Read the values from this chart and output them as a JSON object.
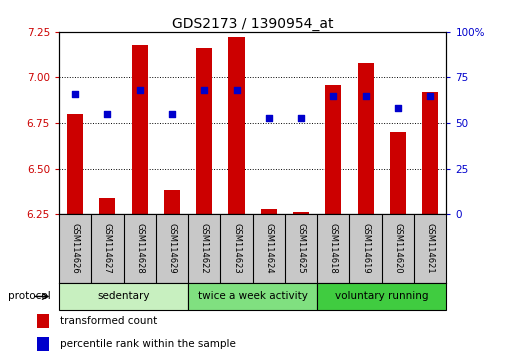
{
  "title": "GDS2173 / 1390954_at",
  "samples": [
    "GSM114626",
    "GSM114627",
    "GSM114628",
    "GSM114629",
    "GSM114622",
    "GSM114623",
    "GSM114624",
    "GSM114625",
    "GSM114618",
    "GSM114619",
    "GSM114620",
    "GSM114621"
  ],
  "groups": [
    {
      "label": "sedentary",
      "indices": [
        0,
        1,
        2,
        3
      ],
      "color": "#c8f0c0"
    },
    {
      "label": "twice a week activity",
      "indices": [
        4,
        5,
        6,
        7
      ],
      "color": "#80e080"
    },
    {
      "label": "voluntary running",
      "indices": [
        8,
        9,
        10,
        11
      ],
      "color": "#40cc40"
    }
  ],
  "bar_values": [
    6.8,
    6.34,
    7.18,
    6.38,
    7.16,
    7.22,
    6.28,
    6.26,
    6.96,
    7.08,
    6.7,
    6.92
  ],
  "percentile_values": [
    66,
    55,
    68,
    55,
    68,
    68,
    53,
    53,
    65,
    65,
    58,
    65
  ],
  "bar_bottom": 6.25,
  "ylim_left": [
    6.25,
    7.25
  ],
  "ylim_right": [
    0,
    100
  ],
  "yticks_left": [
    6.25,
    6.5,
    6.75,
    7.0,
    7.25
  ],
  "yticks_right": [
    0,
    25,
    50,
    75,
    100
  ],
  "bar_color": "#cc0000",
  "dot_color": "#0000cc",
  "protocol_label": "protocol",
  "legend_items": [
    {
      "color": "#cc0000",
      "label": "transformed count"
    },
    {
      "color": "#0000cc",
      "label": "percentile rank within the sample"
    }
  ],
  "title_fontsize": 10,
  "tick_label_color_left": "#cc0000",
  "tick_label_color_right": "#0000cc",
  "sample_box_color": "#c8c8c8",
  "bar_width": 0.5
}
